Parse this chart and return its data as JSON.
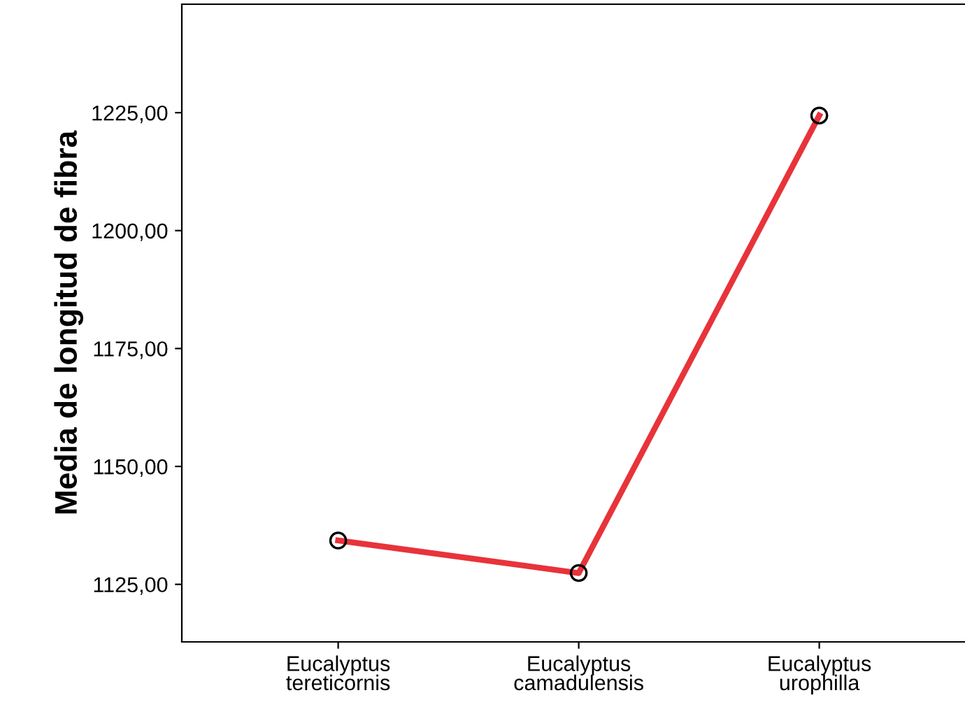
{
  "chart_data": {
    "type": "line",
    "ylabel": "Media de longitud de fibra",
    "categories": [
      "Eucalyptus\ntereticornis",
      "Eucalyptus\ncamadulensis",
      "Eucalyptus\nurophilla"
    ],
    "series": [
      {
        "color": "#e8333a",
        "values": [
          1134.3,
          1127.4,
          1224.4
        ]
      }
    ],
    "ylim": [
      1112.8,
      1248
    ],
    "yticks": [
      {
        "value": 1125,
        "label": "1125,00"
      },
      {
        "value": 1150,
        "label": "1150,00"
      },
      {
        "value": 1175,
        "label": "1175,00"
      },
      {
        "value": 1200,
        "label": "1200,00"
      },
      {
        "value": 1225,
        "label": "1225,00"
      }
    ],
    "marker": "circle",
    "line_style": "solid",
    "grid": false,
    "legend": false
  }
}
